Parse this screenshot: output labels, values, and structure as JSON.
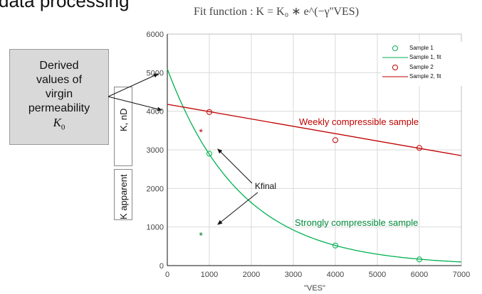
{
  "page": {
    "heading": "data processing",
    "formula": "Fit function : K = K₀ ∗ e^(−γ''VES)",
    "callout_lines": [
      "Derived",
      "values of",
      "virgin",
      "permeability"
    ],
    "callout_symbol": "K",
    "callout_symbol_sub": "0",
    "ylabel_main": "K, nD",
    "ylabel_alt": "K apparent",
    "kfinal_label": "Kfinal",
    "weak_label": "Weekly compressible  sample",
    "strong_label": "Strongly compressible  sample"
  },
  "colors": {
    "weak": "#c00000",
    "strong": "#00b050",
    "strong_text": "#008a3a",
    "grid": "#d9d9d9"
  },
  "chart_data": {
    "type": "scatter",
    "xlabel": "\"VES\"",
    "ylabel": "K, nD",
    "xlim": [
      0,
      7000
    ],
    "ylim": [
      0,
      6000
    ],
    "xticks": [
      0,
      1000,
      2000,
      3000,
      4000,
      5000,
      6000,
      7000
    ],
    "yticks": [
      0,
      1000,
      2000,
      3000,
      4000,
      5000,
      6000
    ],
    "grid": true,
    "legend": {
      "position": "top-right",
      "entries": [
        "Sample 1",
        "Sample 1, fit",
        "Sample 2",
        "Sample 2, fit"
      ]
    },
    "series": [
      {
        "name": "Sample 1",
        "kind": "points",
        "x": [
          1000,
          4000,
          6000
        ],
        "y": [
          2900,
          520,
          160
        ]
      },
      {
        "name": "Sample 1, fit",
        "kind": "line",
        "K0": 5100,
        "gamma": 0.00057
      },
      {
        "name": "Sample 2",
        "kind": "points",
        "x": [
          1000,
          4000,
          6000
        ],
        "y": [
          3980,
          3250,
          3050
        ]
      },
      {
        "name": "Sample 2, fit",
        "kind": "line",
        "x": [
          0,
          7000
        ],
        "y": [
          4180,
          2850
        ]
      }
    ],
    "kfinal_markers": [
      {
        "x": 800,
        "y": 3500,
        "series": "Sample 2"
      },
      {
        "x": 800,
        "y": 820,
        "series": "Sample 1"
      }
    ]
  }
}
